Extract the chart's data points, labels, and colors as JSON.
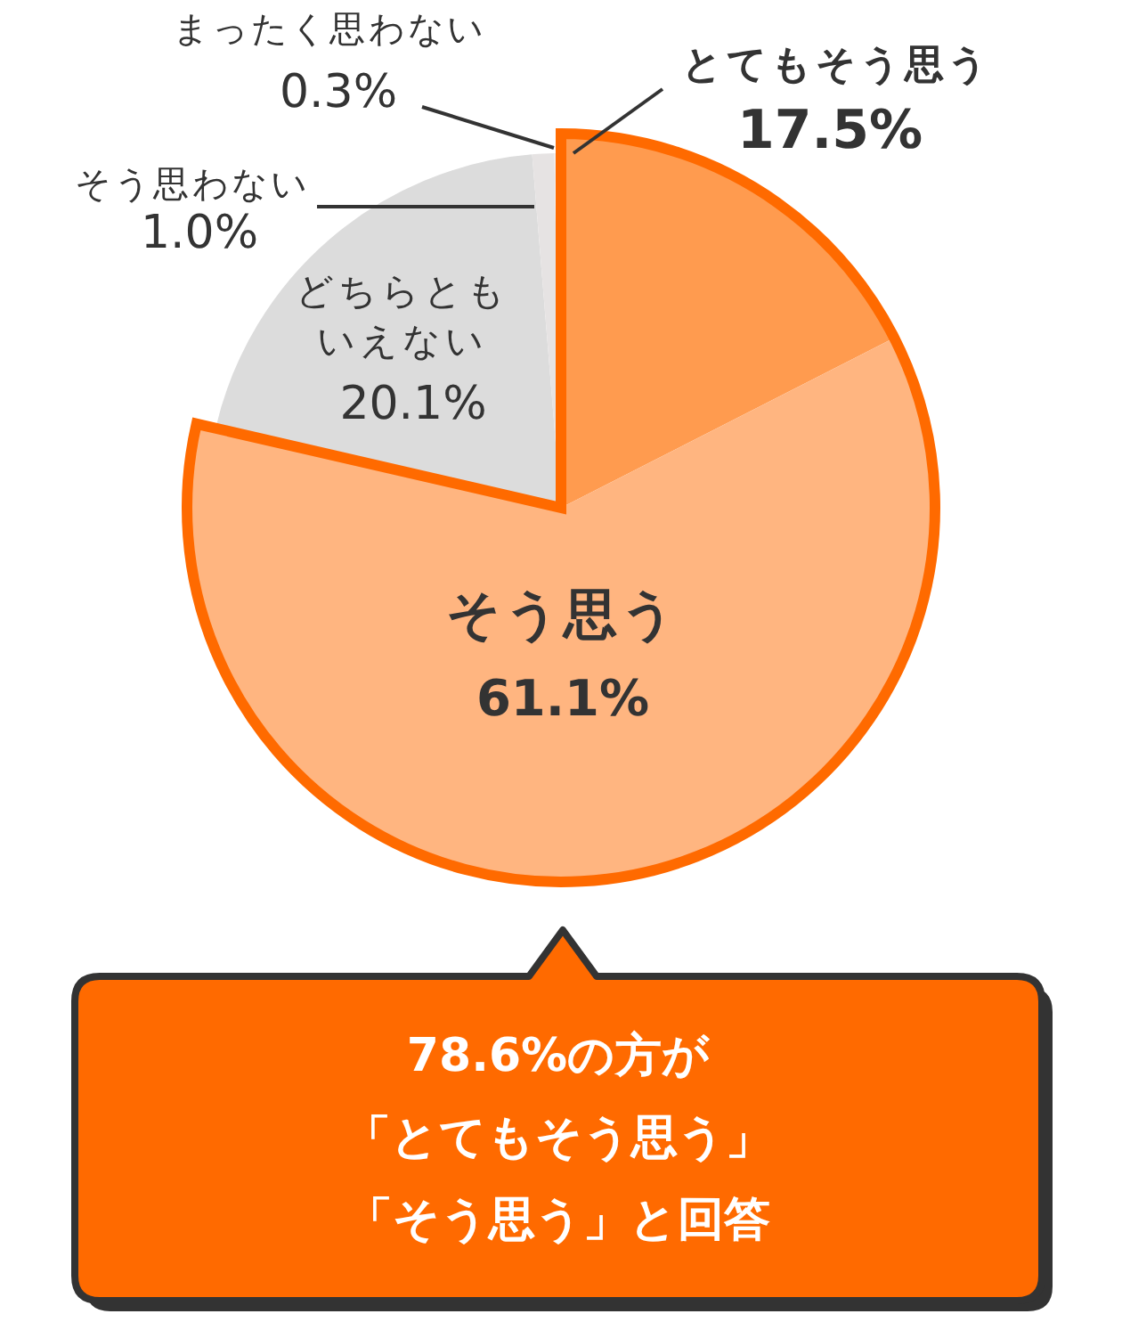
{
  "chart_data": {
    "type": "pie",
    "categories": [
      "とてもそう思う",
      "そう思う",
      "どちらともいえない",
      "そう思わない",
      "まったく思わない"
    ],
    "values": [
      17.5,
      61.1,
      20.1,
      1.0,
      0.3
    ],
    "colors": [
      "#ff9b4f",
      "#ffb580",
      "#dcdcdc",
      "#e6e3e3",
      "#efebeb"
    ],
    "value_labels": [
      "17.5%",
      "61.1%",
      "20.1%",
      "1.0%",
      "0.3%"
    ],
    "annotations": [
      "78.6%の方が「とてもそう思う」「そう思う」と回答"
    ]
  }
}
